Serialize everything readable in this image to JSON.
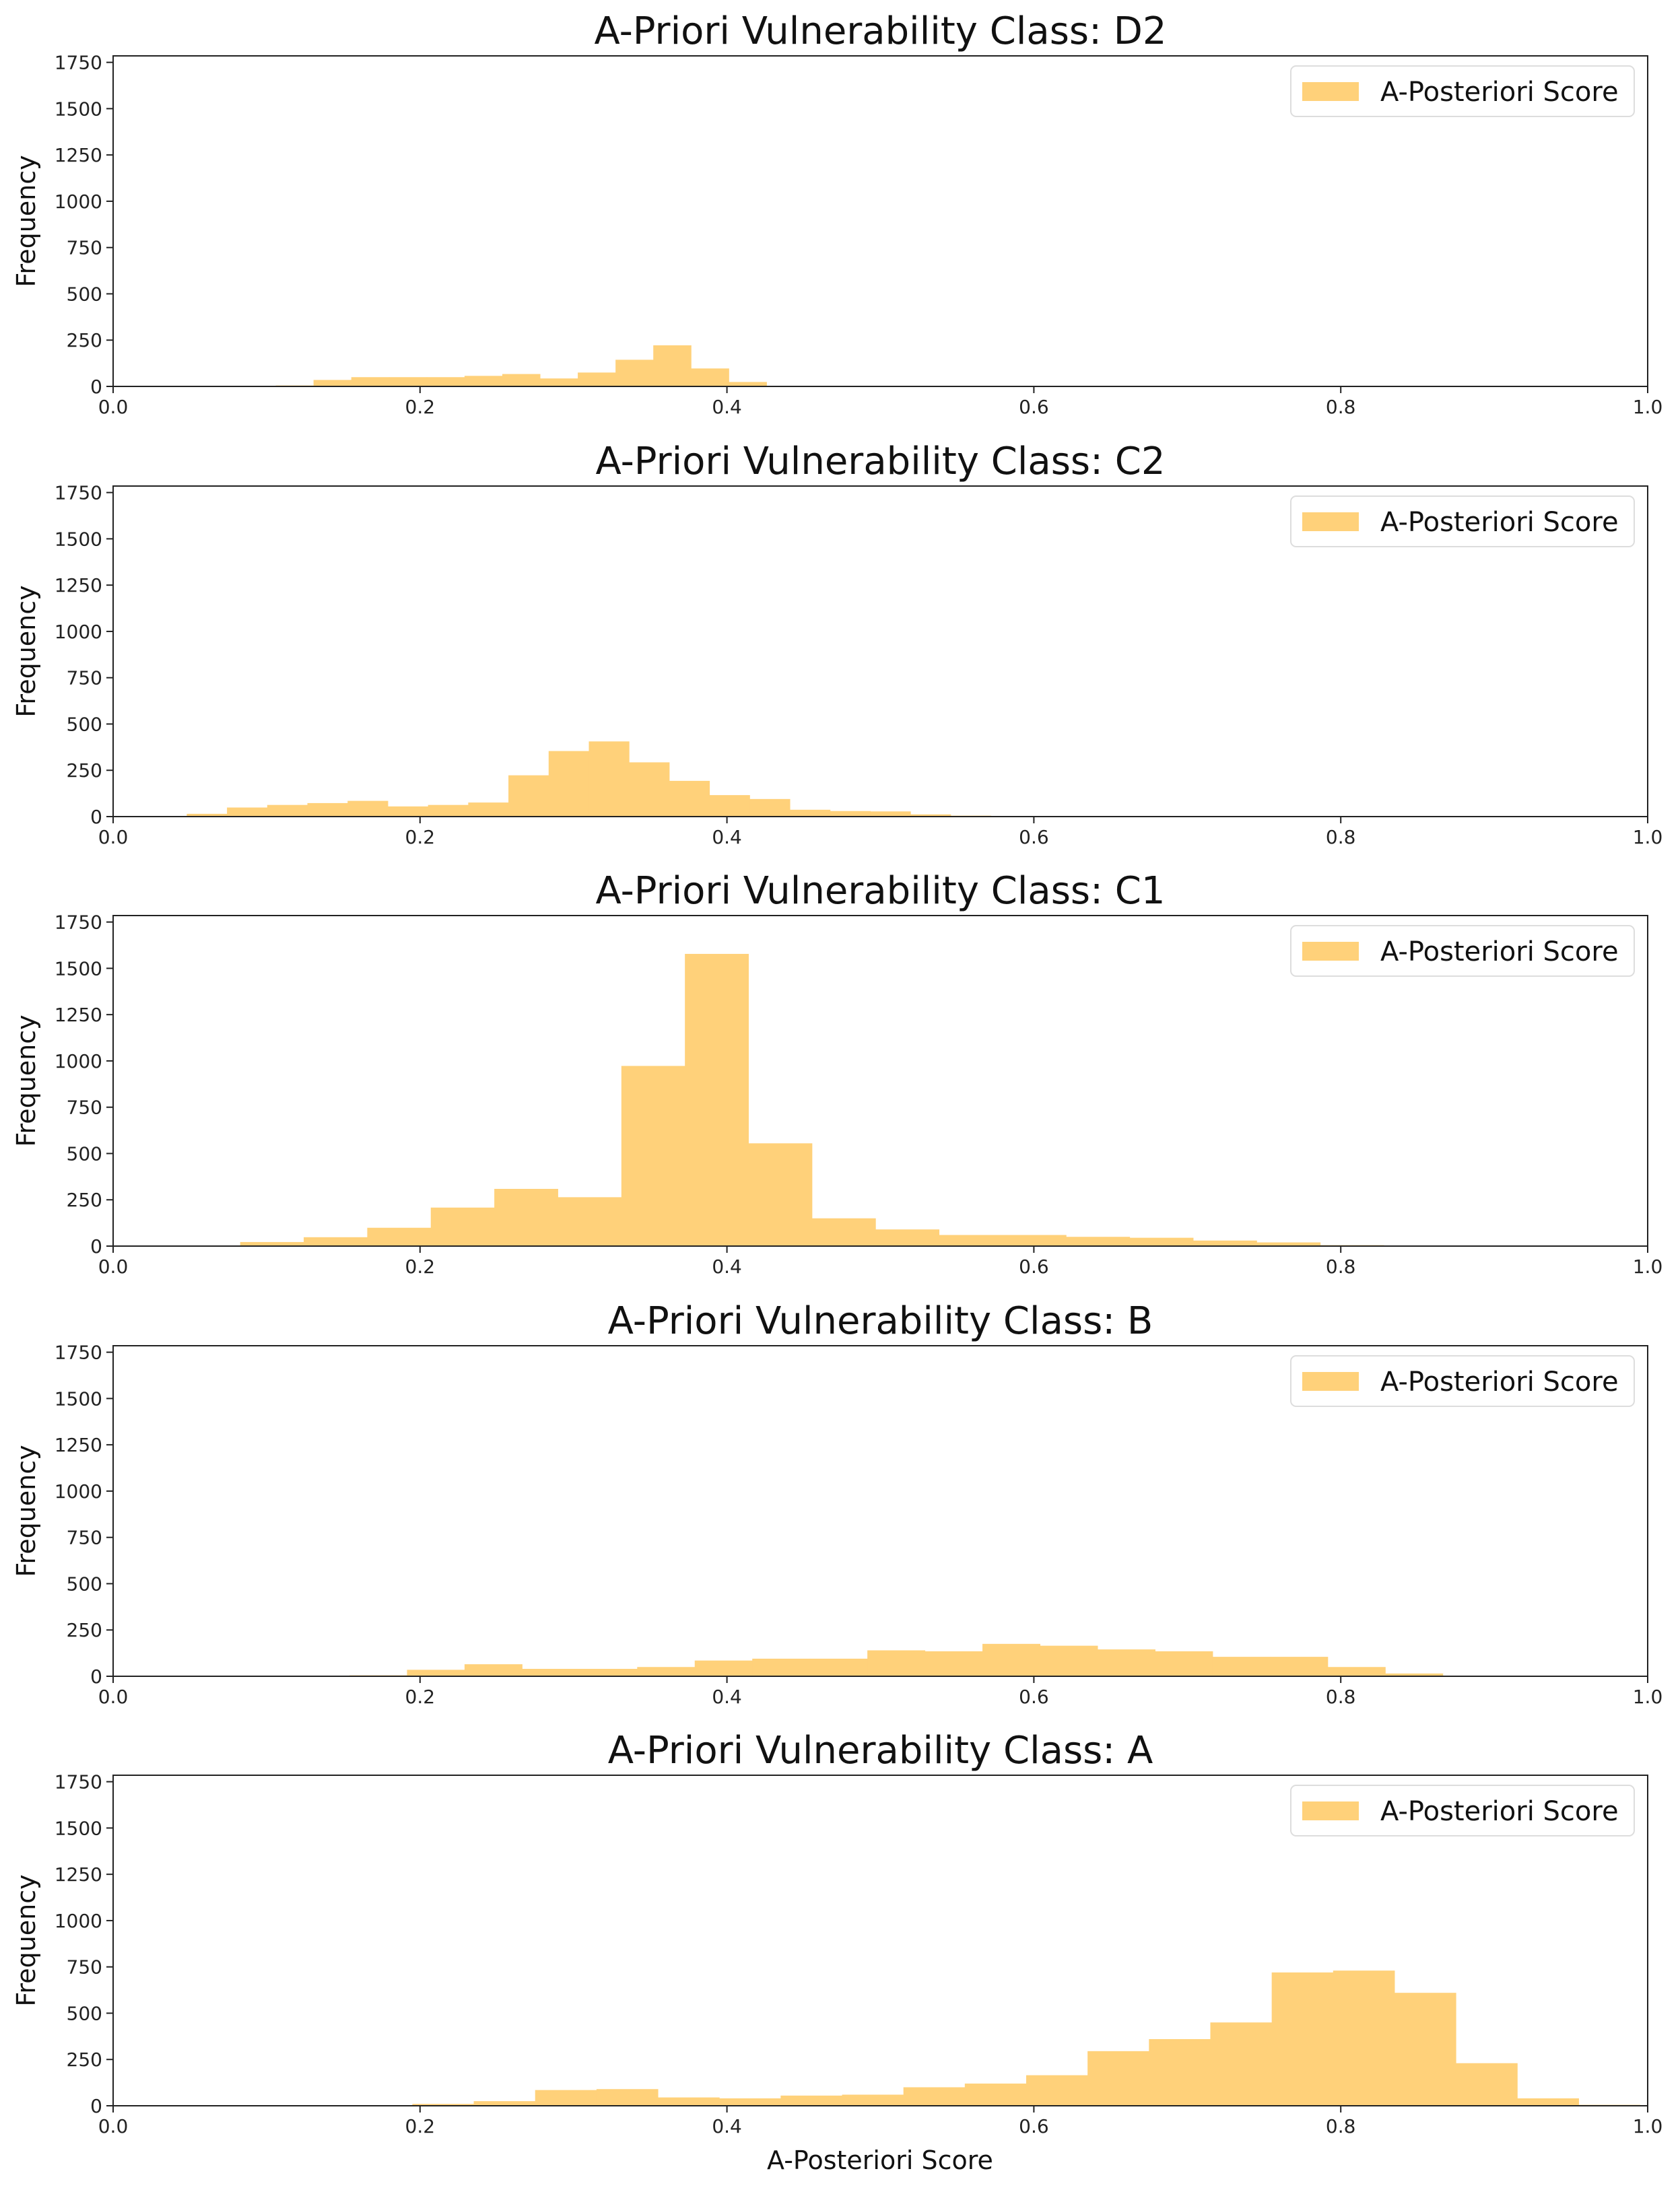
{
  "colors": {
    "bar": "#FFD17A",
    "axis": "#222222",
    "legend_border": "#DDDDDD"
  },
  "xlabel": "A-Posteriori Score",
  "chart_data": [
    {
      "type": "bar",
      "title": "A-Priori Vulnerability Class: D2",
      "ylabel": "Frequency",
      "legend": [
        "A-Posteriori Score"
      ],
      "legend_position": "top-right",
      "xlim": [
        0,
        1
      ],
      "ylim": [
        0,
        1785
      ],
      "xticks": [
        "0.0",
        "0.2",
        "0.4",
        "0.6",
        "0.8",
        "1.0"
      ],
      "yticks": [
        "0",
        "250",
        "500",
        "750",
        "1000",
        "1250",
        "1500",
        "1750"
      ],
      "bin_start": 0.106,
      "bin_width": 0.0246,
      "values": [
        5,
        35,
        50,
        50,
        50,
        57,
        67,
        43,
        75,
        144,
        222,
        97,
        24
      ]
    },
    {
      "type": "bar",
      "title": "A-Priori Vulnerability Class: C2",
      "ylabel": "Frequency",
      "legend": [
        "A-Posteriori Score"
      ],
      "legend_position": "top-right",
      "xlim": [
        0,
        1
      ],
      "ylim": [
        0,
        1785
      ],
      "xticks": [
        "0.0",
        "0.2",
        "0.4",
        "0.6",
        "0.8",
        "1.0"
      ],
      "yticks": [
        "0",
        "250",
        "500",
        "750",
        "1000",
        "1250",
        "1500",
        "1750"
      ],
      "bin_start": 0.048,
      "bin_width": 0.0262,
      "values": [
        15,
        49,
        63,
        73,
        85,
        55,
        63,
        76,
        223,
        354,
        406,
        293,
        193,
        116,
        95,
        37,
        30,
        28,
        12,
        5
      ]
    },
    {
      "type": "bar",
      "title": "A-Priori Vulnerability Class: C1",
      "ylabel": "Frequency",
      "legend": [
        "A-Posteriori Score"
      ],
      "legend_position": "top-right",
      "xlim": [
        0,
        1
      ],
      "ylim": [
        0,
        1785
      ],
      "xticks": [
        "0.0",
        "0.2",
        "0.4",
        "0.6",
        "0.8",
        "1.0"
      ],
      "yticks": [
        "0",
        "250",
        "500",
        "750",
        "1000",
        "1250",
        "1500",
        "1750"
      ],
      "bin_start": 0.0,
      "bin_width": 0.0414,
      "values": [
        3,
        3,
        22,
        48,
        99,
        208,
        309,
        264,
        973,
        1578,
        555,
        150,
        90,
        60,
        60,
        50,
        45,
        30,
        20,
        5
      ]
    },
    {
      "type": "bar",
      "title": "A-Priori Vulnerability Class: B",
      "ylabel": "Frequency",
      "legend": [
        "A-Posteriori Score"
      ],
      "legend_position": "top-right",
      "xlim": [
        0,
        1
      ],
      "ylim": [
        0,
        1785
      ],
      "xticks": [
        "0.0",
        "0.2",
        "0.4",
        "0.6",
        "0.8",
        "1.0"
      ],
      "yticks": [
        "0",
        "250",
        "500",
        "750",
        "1000",
        "1250",
        "1500",
        "1750"
      ],
      "bin_start": 0.154,
      "bin_width": 0.0375,
      "values": [
        5,
        35,
        65,
        40,
        40,
        50,
        85,
        95,
        95,
        140,
        135,
        175,
        165,
        145,
        135,
        105,
        105,
        50,
        15
      ]
    },
    {
      "type": "bar",
      "title": "A-Priori Vulnerability Class: A",
      "ylabel": "Frequency",
      "legend": [
        "A-Posteriori Score"
      ],
      "legend_position": "top-right",
      "xlim": [
        0,
        1
      ],
      "ylim": [
        0,
        1785
      ],
      "xticks": [
        "0.0",
        "0.2",
        "0.4",
        "0.6",
        "0.8",
        "1.0"
      ],
      "yticks": [
        "0",
        "250",
        "500",
        "750",
        "1000",
        "1250",
        "1500",
        "1750"
      ],
      "bin_start": 0.195,
      "bin_width": 0.04,
      "values": [
        10,
        25,
        85,
        90,
        45,
        40,
        55,
        60,
        100,
        120,
        165,
        295,
        360,
        450,
        720,
        730,
        610,
        230,
        40,
        5
      ]
    }
  ]
}
